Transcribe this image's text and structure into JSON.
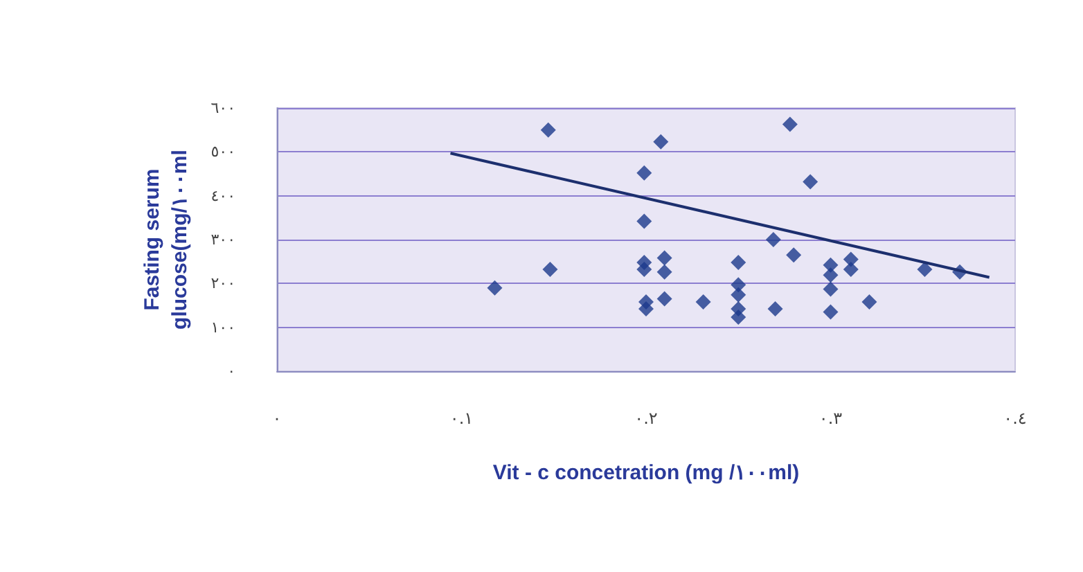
{
  "chart_data": {
    "type": "scatter",
    "xlabel": "Vit - c concetration (mg /١٠٠ml)",
    "ylabel": "Fasting serum\nglucose(mg/١٠٠ml",
    "xlim": [
      0,
      0.4
    ],
    "xticks": [
      {
        "value": 0,
        "label": "٠"
      },
      {
        "value": 0.1,
        "label": "٠.١"
      },
      {
        "value": 0.2,
        "label": "٠.٢"
      },
      {
        "value": 0.3,
        "label": "٠.٣"
      },
      {
        "value": 0.4,
        "label": "٠.٤"
      }
    ],
    "ylim": [
      0,
      600
    ],
    "yticks": [
      {
        "value": 0,
        "label": "٠"
      },
      {
        "value": 100,
        "label": "١٠٠"
      },
      {
        "value": 200,
        "label": "٢٠٠"
      },
      {
        "value": 300,
        "label": "٣٠٠"
      },
      {
        "value": 400,
        "label": "٤٠٠"
      },
      {
        "value": 500,
        "label": "٥٠٠"
      },
      {
        "value": 600,
        "label": "٦٠٠"
      }
    ],
    "grid": "y",
    "marker": "diamond",
    "series": [
      {
        "color": "#1c3a8c",
        "x": [
          0.147,
          0.278,
          0.208,
          0.199,
          0.289,
          0.199,
          0.269,
          0.28,
          0.148,
          0.118,
          0.199,
          0.199,
          0.21,
          0.21,
          0.2,
          0.2,
          0.21,
          0.231,
          0.25,
          0.25,
          0.25,
          0.25,
          0.25,
          0.27,
          0.3,
          0.3,
          0.3,
          0.3,
          0.311,
          0.311,
          0.321,
          0.351,
          0.37
        ],
        "values": [
          550,
          563,
          523,
          452,
          432,
          342,
          300,
          265,
          232,
          190,
          248,
          232,
          258,
          226,
          158,
          142,
          165,
          158,
          248,
          197,
          174,
          142,
          123,
          142,
          242,
          219,
          187,
          135,
          255,
          232,
          158,
          232,
          226
        ]
      },
      {
        "type": "line",
        "color": "#1c2f6e",
        "marker": "none",
        "x": [
          0.094,
          0.386
        ],
        "values": [
          497,
          214
        ]
      }
    ]
  }
}
